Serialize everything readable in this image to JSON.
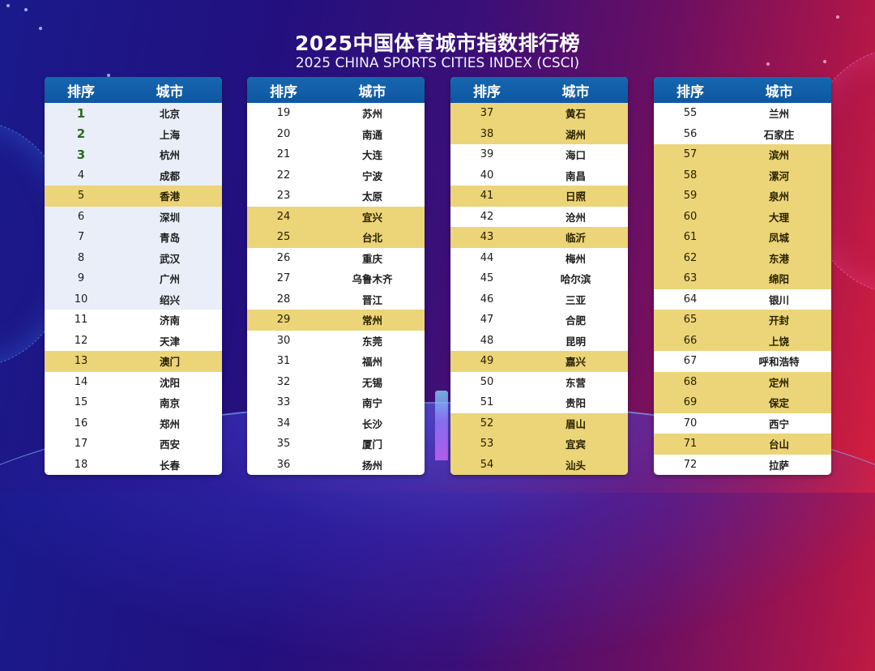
{
  "header": {
    "title": "2025中国体育城市指数排行榜",
    "subtitle": "2025 CHINA SPORTS CITIES INDEX (CSCI)"
  },
  "colors": {
    "header_blue": "#1666b0",
    "highlight_gold": "#ecd478",
    "top10_tint": "#e9eef8",
    "top3_green": "#2c6b1e"
  },
  "columns_header": {
    "rank": "排序",
    "city": "城市"
  },
  "tables": [
    {
      "rows": [
        {
          "rank": "1",
          "city": "北京",
          "style": "tinted top"
        },
        {
          "rank": "2",
          "city": "上海",
          "style": "tinted top"
        },
        {
          "rank": "3",
          "city": "杭州",
          "style": "tinted top"
        },
        {
          "rank": "4",
          "city": "成都",
          "style": "tinted"
        },
        {
          "rank": "5",
          "city": "香港",
          "style": "gold"
        },
        {
          "rank": "6",
          "city": "深圳",
          "style": "tinted"
        },
        {
          "rank": "7",
          "city": "青岛",
          "style": "tinted"
        },
        {
          "rank": "8",
          "city": "武汉",
          "style": "tinted"
        },
        {
          "rank": "9",
          "city": "广州",
          "style": "tinted"
        },
        {
          "rank": "10",
          "city": "绍兴",
          "style": "tinted"
        },
        {
          "rank": "11",
          "city": "济南",
          "style": ""
        },
        {
          "rank": "12",
          "city": "天津",
          "style": ""
        },
        {
          "rank": "13",
          "city": "澳门",
          "style": "gold"
        },
        {
          "rank": "14",
          "city": "沈阳",
          "style": ""
        },
        {
          "rank": "15",
          "city": "南京",
          "style": ""
        },
        {
          "rank": "16",
          "city": "郑州",
          "style": ""
        },
        {
          "rank": "17",
          "city": "西安",
          "style": ""
        },
        {
          "rank": "18",
          "city": "长春",
          "style": ""
        }
      ]
    },
    {
      "rows": [
        {
          "rank": "19",
          "city": "苏州",
          "style": ""
        },
        {
          "rank": "20",
          "city": "南通",
          "style": ""
        },
        {
          "rank": "21",
          "city": "大连",
          "style": ""
        },
        {
          "rank": "22",
          "city": "宁波",
          "style": ""
        },
        {
          "rank": "23",
          "city": "太原",
          "style": ""
        },
        {
          "rank": "24",
          "city": "宜兴",
          "style": "gold"
        },
        {
          "rank": "25",
          "city": "台北",
          "style": "gold"
        },
        {
          "rank": "26",
          "city": "重庆",
          "style": ""
        },
        {
          "rank": "27",
          "city": "乌鲁木齐",
          "style": ""
        },
        {
          "rank": "28",
          "city": "晋江",
          "style": ""
        },
        {
          "rank": "29",
          "city": "常州",
          "style": "gold"
        },
        {
          "rank": "30",
          "city": "东莞",
          "style": ""
        },
        {
          "rank": "31",
          "city": "福州",
          "style": ""
        },
        {
          "rank": "32",
          "city": "无锡",
          "style": ""
        },
        {
          "rank": "33",
          "city": "南宁",
          "style": ""
        },
        {
          "rank": "34",
          "city": "长沙",
          "style": ""
        },
        {
          "rank": "35",
          "city": "厦门",
          "style": ""
        },
        {
          "rank": "36",
          "city": "扬州",
          "style": ""
        }
      ]
    },
    {
      "rows": [
        {
          "rank": "37",
          "city": "黄石",
          "style": "gold"
        },
        {
          "rank": "38",
          "city": "湖州",
          "style": "gold"
        },
        {
          "rank": "39",
          "city": "海口",
          "style": ""
        },
        {
          "rank": "40",
          "city": "南昌",
          "style": ""
        },
        {
          "rank": "41",
          "city": "日照",
          "style": "gold"
        },
        {
          "rank": "42",
          "city": "沧州",
          "style": ""
        },
        {
          "rank": "43",
          "city": "临沂",
          "style": "gold"
        },
        {
          "rank": "44",
          "city": "梅州",
          "style": ""
        },
        {
          "rank": "45",
          "city": "哈尔滨",
          "style": ""
        },
        {
          "rank": "46",
          "city": "三亚",
          "style": ""
        },
        {
          "rank": "47",
          "city": "合肥",
          "style": ""
        },
        {
          "rank": "48",
          "city": "昆明",
          "style": ""
        },
        {
          "rank": "49",
          "city": "嘉兴",
          "style": "gold"
        },
        {
          "rank": "50",
          "city": "东营",
          "style": ""
        },
        {
          "rank": "51",
          "city": "贵阳",
          "style": ""
        },
        {
          "rank": "52",
          "city": "眉山",
          "style": "gold"
        },
        {
          "rank": "53",
          "city": "宜宾",
          "style": "gold"
        },
        {
          "rank": "54",
          "city": "汕头",
          "style": "gold"
        }
      ]
    },
    {
      "rows": [
        {
          "rank": "55",
          "city": "兰州",
          "style": ""
        },
        {
          "rank": "56",
          "city": "石家庄",
          "style": ""
        },
        {
          "rank": "57",
          "city": "滨州",
          "style": "gold"
        },
        {
          "rank": "58",
          "city": "漯河",
          "style": "gold"
        },
        {
          "rank": "59",
          "city": "泉州",
          "style": "gold"
        },
        {
          "rank": "60",
          "city": "大理",
          "style": "gold"
        },
        {
          "rank": "61",
          "city": "凤城",
          "style": "gold"
        },
        {
          "rank": "62",
          "city": "东港",
          "style": "gold"
        },
        {
          "rank": "63",
          "city": "绵阳",
          "style": "gold"
        },
        {
          "rank": "64",
          "city": "银川",
          "style": ""
        },
        {
          "rank": "65",
          "city": "开封",
          "style": "gold"
        },
        {
          "rank": "66",
          "city": "上饶",
          "style": "gold"
        },
        {
          "rank": "67",
          "city": "呼和浩特",
          "style": ""
        },
        {
          "rank": "68",
          "city": "定州",
          "style": "gold"
        },
        {
          "rank": "69",
          "city": "保定",
          "style": "gold"
        },
        {
          "rank": "70",
          "city": "西宁",
          "style": ""
        },
        {
          "rank": "71",
          "city": "台山",
          "style": "gold"
        },
        {
          "rank": "72",
          "city": "拉萨",
          "style": ""
        }
      ]
    }
  ]
}
